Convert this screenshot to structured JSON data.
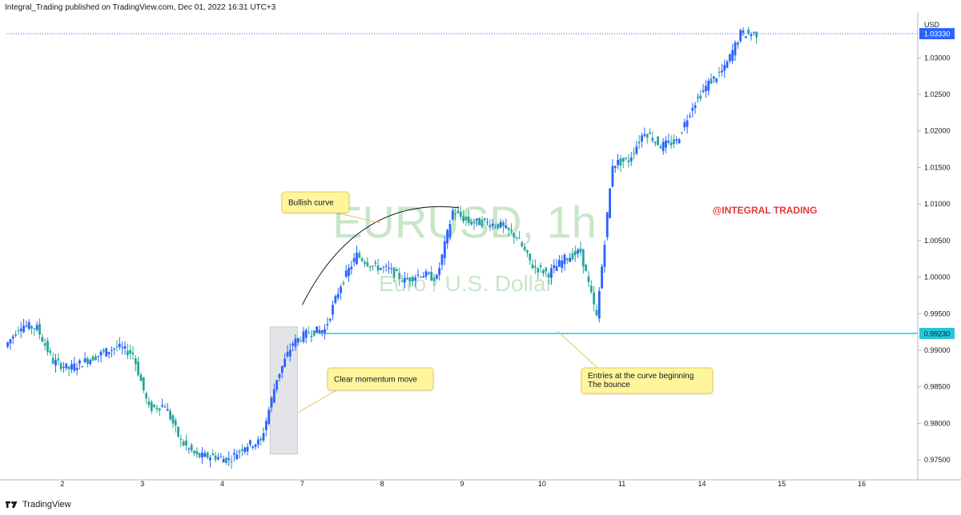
{
  "header": {
    "published": "Integral_Trading published on TradingView.com, Dec 01, 2022 16:31 UTC+3"
  },
  "footer": {
    "brand": "TradingView"
  },
  "colors": {
    "up": "#2962ff",
    "down": "#26a69a",
    "line": "#26c6da",
    "annotation_bg": "#fff59d",
    "annotation_border": "#e6c95f",
    "watermark": "#c8e6c9",
    "brand_text": "#e53935"
  },
  "chart_data": {
    "type": "candlestick",
    "symbol_watermark": "EURUSD, 1h",
    "symbol_subtitle": "Euro / U.S. Dollar",
    "currency": "USD",
    "brand_label": "@INTEGRAL TRADING",
    "y_ticks": [
      "1.03000",
      "1.02500",
      "1.02000",
      "1.01500",
      "1.01000",
      "1.00500",
      "1.00000",
      "0.99500",
      "0.99000",
      "0.98500",
      "0.98000",
      "0.97500"
    ],
    "y_tick_values": [
      1.03,
      1.025,
      1.02,
      1.015,
      1.01,
      1.005,
      1.0,
      0.995,
      0.99,
      0.985,
      0.98,
      0.975
    ],
    "x_ticks": [
      "2",
      "3",
      "4",
      "7",
      "8",
      "9",
      "10",
      "11",
      "14",
      "15",
      "16"
    ],
    "ylim": [
      0.9725,
      1.0355
    ],
    "xlim": [
      0,
      57
    ],
    "price_labels": [
      {
        "text": "1.03330",
        "value": 1.0333
      },
      {
        "text": "0.99230",
        "value": 0.9923
      }
    ],
    "horizontal_lines": [
      {
        "value": 0.9923,
        "x_start": 19.5,
        "style": "solid"
      },
      {
        "value": 1.0333,
        "x_start": 0,
        "style": "dotted"
      }
    ],
    "annotations": [
      {
        "text": "Bullish curve",
        "anchor": [
          24.5,
          1.0075
        ]
      },
      {
        "text": "Clear momentum move",
        "anchor": [
          18.7,
          0.9795
        ]
      },
      {
        "text": "Entries at the curve beginning\nThe bounce",
        "anchor": [
          35,
          0.9915
        ]
      }
    ],
    "curve": {
      "from": [
        18.5,
        0.9962
      ],
      "to": [
        28.3,
        1.0095
      ]
    },
    "highlight_box": {
      "x0": 16.5,
      "x1": 18.2,
      "y0": 0.9758,
      "y1": 0.9932
    },
    "closes": [
      [
        0,
        0.9905
      ],
      [
        1,
        0.9935
      ],
      [
        2,
        0.993
      ],
      [
        3,
        0.9885
      ],
      [
        4,
        0.9875
      ],
      [
        5,
        0.9885
      ],
      [
        6,
        0.9895
      ],
      [
        7,
        0.9905
      ],
      [
        8,
        0.9895
      ],
      [
        9,
        0.982
      ],
      [
        10,
        0.9825
      ],
      [
        11,
        0.9775
      ],
      [
        12,
        0.9755
      ],
      [
        13,
        0.9755
      ],
      [
        14,
        0.975
      ],
      [
        15,
        0.977
      ],
      [
        16,
        0.9775
      ],
      [
        17,
        0.9862
      ],
      [
        18,
        0.991
      ],
      [
        19,
        0.9925
      ],
      [
        20,
        0.9928
      ],
      [
        21,
        0.999
      ],
      [
        22,
        1.003
      ],
      [
        23,
        1.0015
      ],
      [
        24,
        1.001
      ],
      [
        25,
        0.9995
      ],
      [
        26,
        1.0005
      ],
      [
        27,
        0.9998
      ],
      [
        28,
        1.009
      ],
      [
        29,
        1.0075
      ],
      [
        30,
        1.0075
      ],
      [
        31,
        1.007
      ],
      [
        32,
        1.0055
      ],
      [
        33,
        1.0015
      ],
      [
        34,
        1.0005
      ],
      [
        35,
        1.0025
      ],
      [
        36,
        1.0035
      ],
      [
        37,
        0.9945
      ],
      [
        38,
        1.0155
      ],
      [
        39,
        1.016
      ],
      [
        40,
        1.02
      ],
      [
        41,
        1.018
      ],
      [
        42,
        1.0185
      ],
      [
        43,
        1.0235
      ],
      [
        44,
        1.0265
      ],
      [
        45,
        1.0285
      ],
      [
        46,
        1.0333
      ]
    ]
  }
}
